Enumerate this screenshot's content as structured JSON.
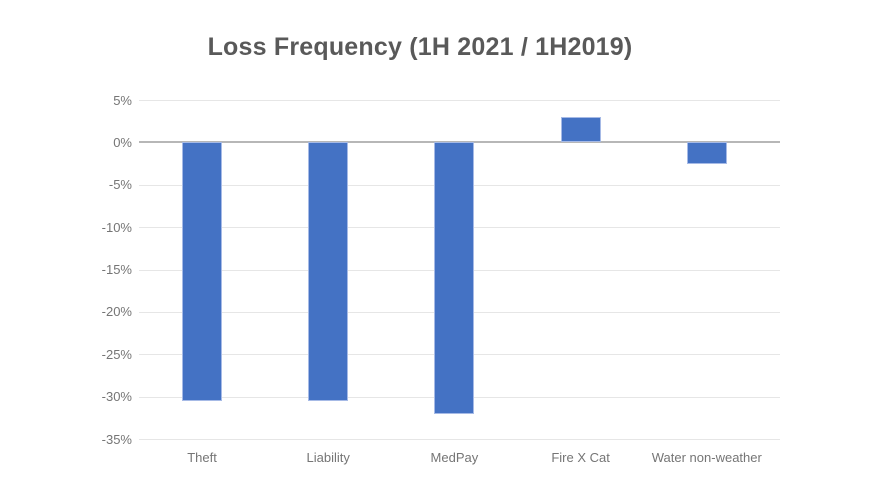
{
  "title": "Loss Frequency (1H 2021 / 1H2019)",
  "chart_data": {
    "type": "bar",
    "title": "Loss Frequency (1H 2021 / 1H2019)",
    "categories": [
      "Theft",
      "Liability",
      "MedPay",
      "Fire X Cat",
      "Water non-weather"
    ],
    "values": [
      -30.5,
      -30.5,
      -32,
      3,
      -2.5
    ],
    "unit": "%",
    "xlabel": "",
    "ylabel": "",
    "ylim": [
      -35,
      5
    ],
    "ytick_step": 5,
    "ytick_labels": [
      "5%",
      "0%",
      "-5%",
      "-10%",
      "-15%",
      "-20%",
      "-25%",
      "-30%",
      "-35%"
    ],
    "grid": true,
    "legend": "none",
    "colors": {
      "bar_fill": "#4472c4",
      "bar_border": "#a6bae6",
      "gridline": "#e6e6e6",
      "zero_line": "#b7b7b7",
      "title_text": "#595959",
      "axis_text": "#757575",
      "background": "#ffffff"
    }
  }
}
